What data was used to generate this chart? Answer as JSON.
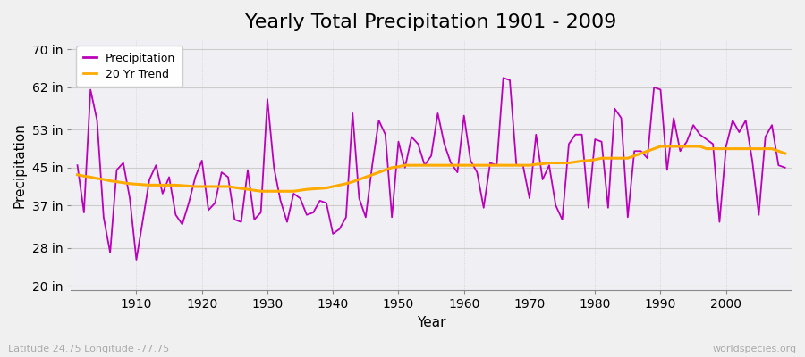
{
  "title": "Yearly Total Precipitation 1901 - 2009",
  "xlabel": "Year",
  "ylabel": "Precipitation",
  "lat_lon_label": "Latitude 24.75 Longitude -77.75",
  "credit": "worldspecies.org",
  "years": [
    1901,
    1902,
    1903,
    1904,
    1905,
    1906,
    1907,
    1908,
    1909,
    1910,
    1911,
    1912,
    1913,
    1914,
    1915,
    1916,
    1917,
    1918,
    1919,
    1920,
    1921,
    1922,
    1923,
    1924,
    1925,
    1926,
    1927,
    1928,
    1929,
    1930,
    1931,
    1932,
    1933,
    1934,
    1935,
    1936,
    1937,
    1938,
    1939,
    1940,
    1941,
    1942,
    1943,
    1944,
    1945,
    1946,
    1947,
    1948,
    1949,
    1950,
    1951,
    1952,
    1953,
    1954,
    1955,
    1956,
    1957,
    1958,
    1959,
    1960,
    1961,
    1962,
    1963,
    1964,
    1965,
    1966,
    1967,
    1968,
    1969,
    1970,
    1971,
    1972,
    1973,
    1974,
    1975,
    1976,
    1977,
    1978,
    1979,
    1980,
    1981,
    1982,
    1983,
    1984,
    1985,
    1986,
    1987,
    1988,
    1989,
    1990,
    1991,
    1992,
    1993,
    1994,
    1995,
    1996,
    1997,
    1998,
    1999,
    2000,
    2001,
    2002,
    2003,
    2004,
    2005,
    2006,
    2007,
    2008,
    2009
  ],
  "precip": [
    45.5,
    35.5,
    61.5,
    55.0,
    34.5,
    27.0,
    44.5,
    46.0,
    38.5,
    25.5,
    34.0,
    42.5,
    45.5,
    39.5,
    43.0,
    35.0,
    33.0,
    37.5,
    43.0,
    46.5,
    36.0,
    37.5,
    44.0,
    43.0,
    34.0,
    33.5,
    44.5,
    34.0,
    35.5,
    59.5,
    45.0,
    38.0,
    33.5,
    39.5,
    38.5,
    35.0,
    35.5,
    38.0,
    37.5,
    31.0,
    32.0,
    34.5,
    56.5,
    38.5,
    34.5,
    45.5,
    55.0,
    52.0,
    34.5,
    50.5,
    45.0,
    51.5,
    50.0,
    45.5,
    47.5,
    56.5,
    50.0,
    46.0,
    44.0,
    56.0,
    46.5,
    44.0,
    36.5,
    46.0,
    45.5,
    64.0,
    63.5,
    45.5,
    45.5,
    38.5,
    52.0,
    42.5,
    45.5,
    37.0,
    34.0,
    50.0,
    52.0,
    52.0,
    36.5,
    51.0,
    50.5,
    36.5,
    57.5,
    55.5,
    34.5,
    48.5,
    48.5,
    47.0,
    62.0,
    61.5,
    44.5,
    55.5,
    48.5,
    50.5,
    54.0,
    52.0,
    51.0,
    50.0,
    33.5,
    49.5,
    55.0,
    52.5,
    55.0,
    46.5,
    35.0,
    51.5,
    54.0,
    45.5,
    45.0
  ],
  "trend": [
    43.5,
    43.2,
    43.0,
    42.7,
    42.5,
    42.2,
    42.0,
    41.8,
    41.6,
    41.5,
    41.4,
    41.3,
    41.3,
    41.3,
    41.3,
    41.3,
    41.2,
    41.1,
    41.0,
    41.0,
    41.0,
    41.0,
    41.0,
    41.0,
    40.8,
    40.6,
    40.4,
    40.2,
    40.0,
    40.0,
    40.0,
    40.0,
    40.0,
    40.0,
    40.2,
    40.4,
    40.5,
    40.6,
    40.7,
    41.0,
    41.3,
    41.6,
    42.0,
    42.5,
    43.0,
    43.5,
    44.0,
    44.5,
    45.0,
    45.2,
    45.5,
    45.5,
    45.5,
    45.5,
    45.5,
    45.5,
    45.5,
    45.5,
    45.5,
    45.5,
    45.5,
    45.5,
    45.5,
    45.5,
    45.5,
    45.5,
    45.5,
    45.5,
    45.5,
    45.5,
    45.7,
    45.8,
    46.0,
    46.0,
    46.0,
    46.0,
    46.2,
    46.4,
    46.5,
    46.7,
    47.0,
    47.0,
    47.0,
    47.0,
    47.0,
    47.5,
    48.0,
    48.5,
    49.0,
    49.5,
    49.5,
    49.5,
    49.5,
    49.5,
    49.5,
    49.5,
    49.0,
    49.0,
    49.0,
    49.0,
    49.0,
    49.0,
    49.0,
    49.0,
    49.0,
    49.0,
    49.0,
    48.5,
    48.0
  ],
  "precip_color": "#bb00bb",
  "trend_color": "#ffaa00",
  "bg_color": "#f0f0f0",
  "plot_bg_color": "#f0f0f4",
  "grid_color": "#cccccc",
  "yticks": [
    20,
    28,
    37,
    45,
    53,
    62,
    70
  ],
  "ytick_labels": [
    "20 in",
    "28 in",
    "37 in",
    "45 in",
    "53 in",
    "62 in",
    "70 in"
  ],
  "ylim": [
    19,
    72
  ],
  "xlim": [
    1900,
    2010
  ],
  "xticks": [
    1910,
    1920,
    1930,
    1940,
    1950,
    1960,
    1970,
    1980,
    1990,
    2000
  ],
  "title_fontsize": 16,
  "label_fontsize": 11,
  "tick_fontsize": 10
}
